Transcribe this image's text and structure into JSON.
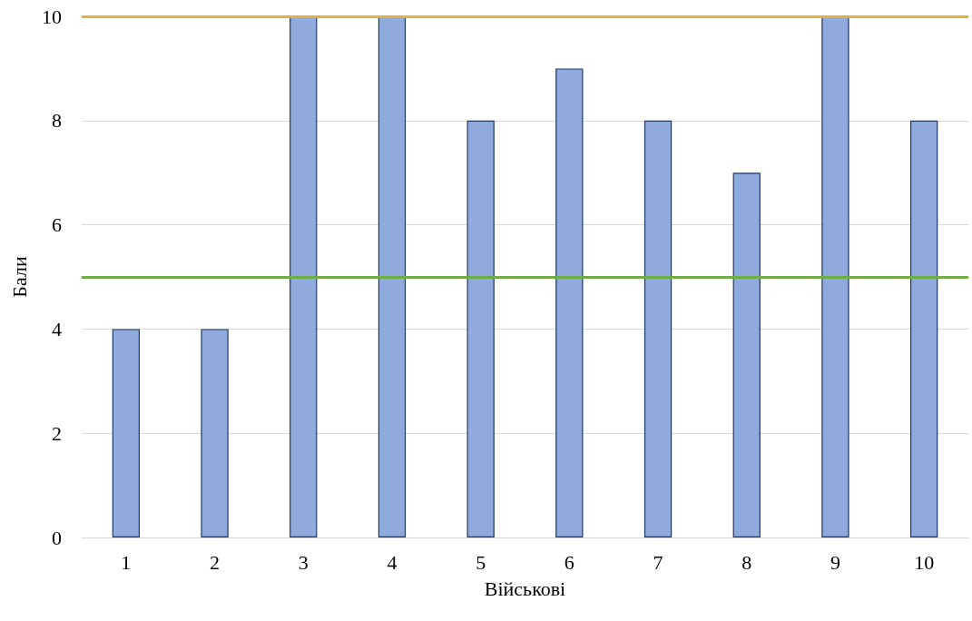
{
  "chart_data": {
    "type": "bar",
    "xlabel": "Військові",
    "ylabel": "Бали",
    "categories": [
      "1",
      "2",
      "3",
      "4",
      "5",
      "6",
      "7",
      "8",
      "9",
      "10"
    ],
    "values": [
      4,
      4,
      10,
      10,
      8,
      9,
      8,
      7,
      10,
      8
    ],
    "color": "#8faadc",
    "ylim": [
      0,
      10
    ],
    "yticks": [
      0,
      2,
      4,
      6,
      8,
      10
    ],
    "grid": "y",
    "ref_lines": [
      {
        "axis": "y",
        "value": 10,
        "color": "#e0b040"
      },
      {
        "axis": "y",
        "value": 5,
        "color": "#70ad47"
      }
    ]
  }
}
